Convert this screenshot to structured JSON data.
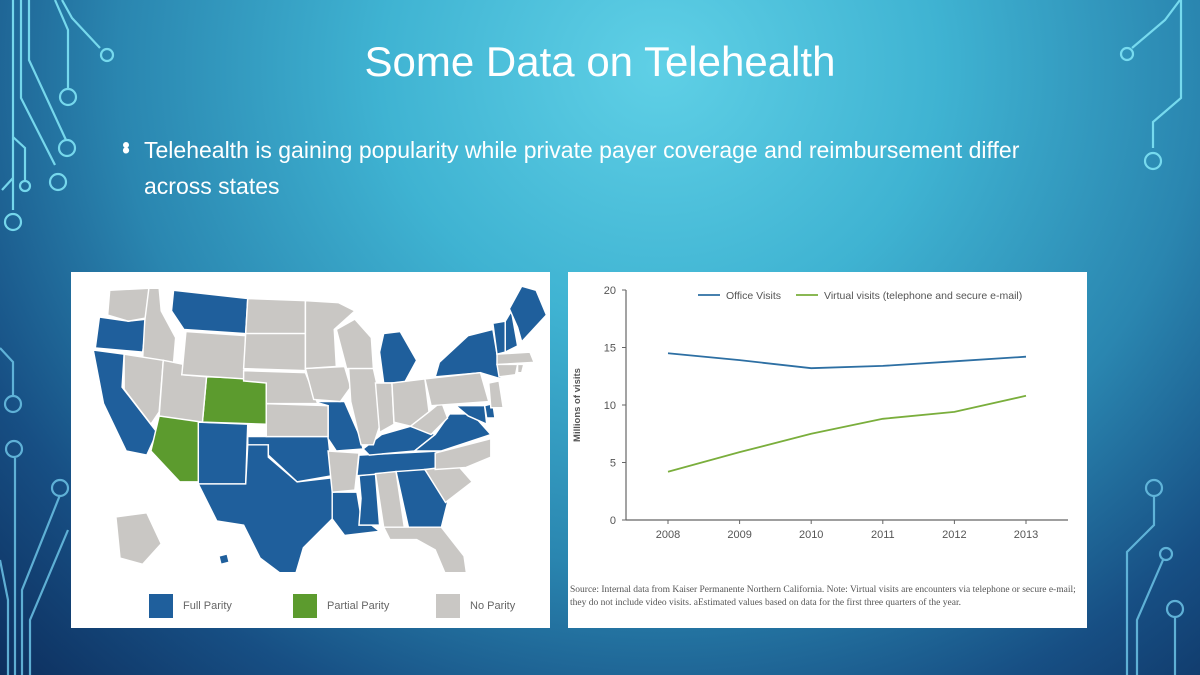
{
  "slide": {
    "title": "Some Data on Telehealth",
    "bullet": "Telehealth is gaining popularity while private payer coverage and reimbursement differ across states",
    "bullet_icon": "bullet-dot"
  },
  "map": {
    "colors": {
      "full": "#1f5f9c",
      "partial": "#5c9b2e",
      "none": "#c9c7c4"
    },
    "legend": [
      {
        "label": "Full Parity",
        "key": "full"
      },
      {
        "label": "Partial Parity",
        "key": "partial"
      },
      {
        "label": "No Parity",
        "key": "none"
      }
    ],
    "states": {
      "full": [
        "OR",
        "CA",
        "MT",
        "NM",
        "TX",
        "OK",
        "MO",
        "LA",
        "MS",
        "TN",
        "KY",
        "GA",
        "VA",
        "MI",
        "NY",
        "VT",
        "NH",
        "ME",
        "MD",
        "DE",
        "HI"
      ],
      "partial": [
        "AZ",
        "CO"
      ],
      "none": [
        "WA",
        "ID",
        "NV",
        "UT",
        "WY",
        "ND",
        "SD",
        "NE",
        "KS",
        "MN",
        "IA",
        "WI",
        "IL",
        "IN",
        "OH",
        "AR",
        "AL",
        "FL",
        "SC",
        "NC",
        "WV",
        "PA",
        "NJ",
        "CT",
        "RI",
        "MA",
        "AK"
      ]
    }
  },
  "chart_data": {
    "type": "line",
    "title": "",
    "xlabel": "",
    "ylabel": "Millions of visits",
    "x": [
      2008,
      2009,
      2010,
      2011,
      2012,
      2013
    ],
    "series": [
      {
        "name": "Office Visits",
        "color": "#2d6fa3",
        "values": [
          14.5,
          13.9,
          13.2,
          13.4,
          13.8,
          14.2
        ]
      },
      {
        "name": "Virtual visits (telephone and secure e-mail)",
        "color": "#7aae3c",
        "values": [
          4.2,
          5.9,
          7.5,
          8.8,
          9.4,
          10.8
        ]
      }
    ],
    "ylim": [
      0,
      20
    ],
    "yticks": [
      0,
      5,
      10,
      15,
      20
    ],
    "grid": false,
    "legend": "top"
  },
  "source_note": "Source: Internal data from Kaiser Permanente Northern California. Note: Virtual visits are encounters via telephone or secure e-mail; they do not include video visits. aEstimated values based on data for the first three quarters of the year."
}
